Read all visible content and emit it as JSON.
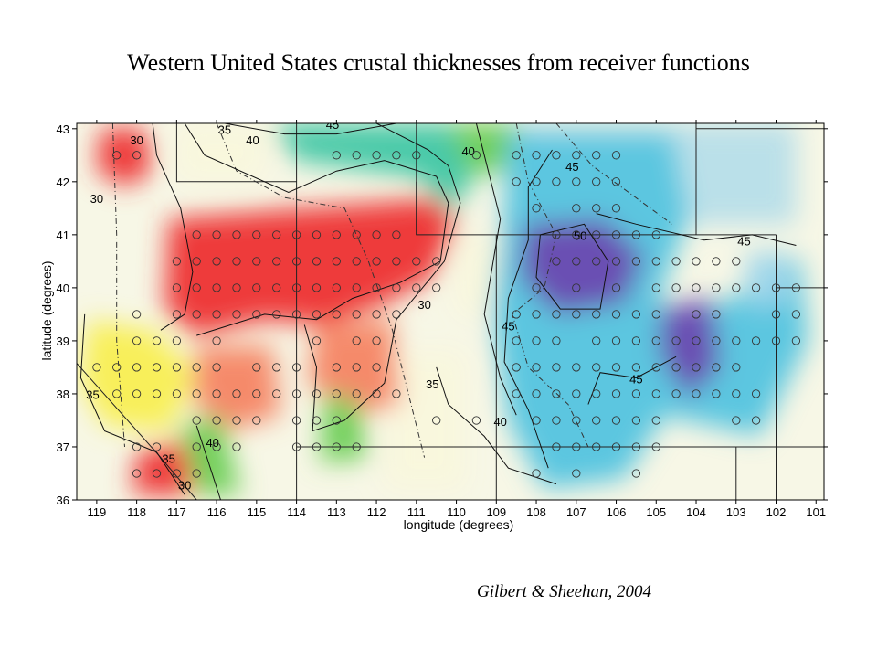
{
  "title": "Western United States crustal thicknesses from receiver functions",
  "citation": "Gilbert & Sheehan, 2004",
  "chart_data": {
    "type": "heatmap",
    "xlabel": "longitude (degrees)",
    "ylabel": "latitude (degrees)",
    "xlim": [
      119.5,
      100.8
    ],
    "ylim": [
      36,
      43.1
    ],
    "x_ticks": [
      "119",
      "118",
      "117",
      "116",
      "115",
      "114",
      "113",
      "112",
      "111",
      "110",
      "109",
      "108",
      "107",
      "106",
      "105",
      "104",
      "103",
      "102",
      "101"
    ],
    "y_ticks": [
      "43",
      "42",
      "41",
      "40",
      "39",
      "38",
      "37",
      "36"
    ],
    "colorscale": [
      {
        "value": 30,
        "color": "#ee3b3b"
      },
      {
        "value": 33,
        "color": "#f58a6a"
      },
      {
        "value": 35,
        "color": "#f8ef5a"
      },
      {
        "value": 38,
        "color": "#f9f7d8"
      },
      {
        "value": 40,
        "color": "#6fcf5a"
      },
      {
        "value": 42,
        "color": "#48c9a8"
      },
      {
        "value": 44,
        "color": "#5cc6e0"
      },
      {
        "value": 47,
        "color": "#9fd6ea"
      },
      {
        "value": 50,
        "color": "#6a4fb3"
      }
    ],
    "zones": [
      {
        "name": "Great Basin red zone",
        "x": 114.5,
        "y": 40.5,
        "value": 30
      },
      {
        "name": "NW corner red",
        "x": 118.2,
        "y": 42.4,
        "value": 31
      },
      {
        "name": "Utah red",
        "x": 111.5,
        "y": 40.8,
        "value": 31
      },
      {
        "name": "SE California red",
        "x": 117.3,
        "y": 36.4,
        "value": 31
      },
      {
        "name": "SW yellow",
        "x": 117.5,
        "y": 38.5,
        "value": 35
      },
      {
        "name": "Central Nevada orange",
        "x": 115.5,
        "y": 38.2,
        "value": 34
      },
      {
        "name": "Utah orange",
        "x": 112.3,
        "y": 38.5,
        "value": 34
      },
      {
        "name": "Colorado Plateau pale",
        "x": 110.5,
        "y": 38.5,
        "value": 38
      },
      {
        "name": "Sierra green",
        "x": 116.2,
        "y": 36.8,
        "value": 41
      },
      {
        "name": "Wyoming cyan",
        "x": 111.5,
        "y": 42.8,
        "value": 44
      },
      {
        "name": "Colorado purple",
        "x": 106.8,
        "y": 40.2,
        "value": 50
      },
      {
        "name": "Eastern purple",
        "x": 104.0,
        "y": 39.0,
        "value": 49
      },
      {
        "name": "Rocky Mt cyan",
        "x": 105.5,
        "y": 38.0,
        "value": 45
      },
      {
        "name": "Great Plains pale",
        "x": 102.5,
        "y": 41.7,
        "value": 46
      }
    ],
    "contour_levels": [
      30,
      35,
      40,
      45,
      50
    ],
    "contour_labels": [
      "30",
      "30",
      "30",
      "30",
      "35",
      "35",
      "35",
      "35",
      "40",
      "40",
      "40",
      "40",
      "45",
      "45",
      "45",
      "45",
      "45",
      "50"
    ],
    "stations": [
      [
        118.5,
        42.5
      ],
      [
        118,
        42.5
      ],
      [
        113,
        42.5
      ],
      [
        112.5,
        42.5
      ],
      [
        112,
        42.5
      ],
      [
        111.5,
        42.5
      ],
      [
        111,
        42.5
      ],
      [
        109.5,
        42.5
      ],
      [
        108.5,
        42.5
      ],
      [
        108,
        42.5
      ],
      [
        107.5,
        42.5
      ],
      [
        107,
        42.5
      ],
      [
        106.5,
        42.5
      ],
      [
        106,
        42.5
      ],
      [
        108.5,
        42
      ],
      [
        108,
        42
      ],
      [
        107.5,
        42
      ],
      [
        107,
        42
      ],
      [
        106.5,
        42
      ],
      [
        106,
        42
      ],
      [
        108,
        41.5
      ],
      [
        107,
        41.5
      ],
      [
        106.5,
        41.5
      ],
      [
        106,
        41.5
      ],
      [
        116.5,
        41
      ],
      [
        116,
        41
      ],
      [
        115.5,
        41
      ],
      [
        115,
        41
      ],
      [
        114.5,
        41
      ],
      [
        114,
        41
      ],
      [
        113.5,
        41
      ],
      [
        113,
        41
      ],
      [
        112.5,
        41
      ],
      [
        112,
        41
      ],
      [
        111.5,
        41
      ],
      [
        107.5,
        41
      ],
      [
        107,
        41
      ],
      [
        106.5,
        41
      ],
      [
        106,
        41
      ],
      [
        105.5,
        41
      ],
      [
        105,
        41
      ],
      [
        117,
        40.5
      ],
      [
        116.5,
        40.5
      ],
      [
        116,
        40.5
      ],
      [
        115.5,
        40.5
      ],
      [
        115,
        40.5
      ],
      [
        114.5,
        40.5
      ],
      [
        114,
        40.5
      ],
      [
        113.5,
        40.5
      ],
      [
        113,
        40.5
      ],
      [
        112.5,
        40.5
      ],
      [
        112,
        40.5
      ],
      [
        111.5,
        40.5
      ],
      [
        111,
        40.5
      ],
      [
        110.5,
        40.5
      ],
      [
        107.5,
        40.5
      ],
      [
        107,
        40.5
      ],
      [
        106.5,
        40.5
      ],
      [
        106,
        40.5
      ],
      [
        105.5,
        40.5
      ],
      [
        105,
        40.5
      ],
      [
        104.5,
        40.5
      ],
      [
        104,
        40.5
      ],
      [
        103.5,
        40.5
      ],
      [
        103,
        40.5
      ],
      [
        117,
        40
      ],
      [
        116.5,
        40
      ],
      [
        116,
        40
      ],
      [
        115.5,
        40
      ],
      [
        115,
        40
      ],
      [
        114.5,
        40
      ],
      [
        114,
        40
      ],
      [
        113.5,
        40
      ],
      [
        113,
        40
      ],
      [
        112.5,
        40
      ],
      [
        112,
        40
      ],
      [
        111.5,
        40
      ],
      [
        111,
        40
      ],
      [
        110.5,
        40
      ],
      [
        108,
        40
      ],
      [
        107,
        40
      ],
      [
        106,
        40
      ],
      [
        105,
        40
      ],
      [
        104.5,
        40
      ],
      [
        104,
        40
      ],
      [
        103.5,
        40
      ],
      [
        103,
        40
      ],
      [
        102.5,
        40
      ],
      [
        102,
        40
      ],
      [
        101.5,
        40
      ],
      [
        118,
        39.5
      ],
      [
        117,
        39.5
      ],
      [
        116.5,
        39.5
      ],
      [
        116,
        39.5
      ],
      [
        115.5,
        39.5
      ],
      [
        115,
        39.5
      ],
      [
        114.5,
        39.5
      ],
      [
        114,
        39.5
      ],
      [
        113.5,
        39.5
      ],
      [
        113,
        39.5
      ],
      [
        112.5,
        39.5
      ],
      [
        112,
        39.5
      ],
      [
        111.5,
        39.5
      ],
      [
        108.5,
        39.5
      ],
      [
        108,
        39.5
      ],
      [
        107.5,
        39.5
      ],
      [
        107,
        39.5
      ],
      [
        106.5,
        39.5
      ],
      [
        106,
        39.5
      ],
      [
        105.5,
        39.5
      ],
      [
        105,
        39.5
      ],
      [
        104,
        39.5
      ],
      [
        103.5,
        39.5
      ],
      [
        102,
        39.5
      ],
      [
        101.5,
        39.5
      ],
      [
        118,
        39
      ],
      [
        117.5,
        39
      ],
      [
        117,
        39
      ],
      [
        116,
        39
      ],
      [
        113.5,
        39
      ],
      [
        112.5,
        39
      ],
      [
        112,
        39
      ],
      [
        108.5,
        39
      ],
      [
        108,
        39
      ],
      [
        107.5,
        39
      ],
      [
        106.5,
        39
      ],
      [
        106,
        39
      ],
      [
        105.5,
        39
      ],
      [
        105,
        39
      ],
      [
        104.5,
        39
      ],
      [
        104,
        39
      ],
      [
        103.5,
        39
      ],
      [
        103,
        39
      ],
      [
        102.5,
        39
      ],
      [
        102,
        39
      ],
      [
        101.5,
        39
      ],
      [
        119,
        38.5
      ],
      [
        118.5,
        38.5
      ],
      [
        118,
        38.5
      ],
      [
        117.5,
        38.5
      ],
      [
        117,
        38.5
      ],
      [
        116.5,
        38.5
      ],
      [
        116,
        38.5
      ],
      [
        115,
        38.5
      ],
      [
        114.5,
        38.5
      ],
      [
        114,
        38.5
      ],
      [
        113,
        38.5
      ],
      [
        112.5,
        38.5
      ],
      [
        112,
        38.5
      ],
      [
        108.5,
        38.5
      ],
      [
        108,
        38.5
      ],
      [
        107.5,
        38.5
      ],
      [
        107,
        38.5
      ],
      [
        106.5,
        38.5
      ],
      [
        106,
        38.5
      ],
      [
        105.5,
        38.5
      ],
      [
        105,
        38.5
      ],
      [
        104.5,
        38.5
      ],
      [
        104,
        38.5
      ],
      [
        103.5,
        38.5
      ],
      [
        103,
        38.5
      ],
      [
        118.5,
        38
      ],
      [
        118,
        38
      ],
      [
        117.5,
        38
      ],
      [
        117,
        38
      ],
      [
        116.5,
        38
      ],
      [
        116,
        38
      ],
      [
        115.5,
        38
      ],
      [
        115,
        38
      ],
      [
        114.5,
        38
      ],
      [
        114,
        38
      ],
      [
        113.5,
        38
      ],
      [
        113,
        38
      ],
      [
        112.5,
        38
      ],
      [
        112,
        38
      ],
      [
        111.5,
        38
      ],
      [
        108.5,
        38
      ],
      [
        108,
        38
      ],
      [
        107.5,
        38
      ],
      [
        107,
        38
      ],
      [
        106.5,
        38
      ],
      [
        106,
        38
      ],
      [
        105.5,
        38
      ],
      [
        105,
        38
      ],
      [
        104.5,
        38
      ],
      [
        104,
        38
      ],
      [
        103.5,
        38
      ],
      [
        103,
        38
      ],
      [
        102.5,
        38
      ],
      [
        116.5,
        37.5
      ],
      [
        116,
        37.5
      ],
      [
        115.5,
        37.5
      ],
      [
        115,
        37.5
      ],
      [
        114,
        37.5
      ],
      [
        113.5,
        37.5
      ],
      [
        113,
        37.5
      ],
      [
        110.5,
        37.5
      ],
      [
        109.5,
        37.5
      ],
      [
        108,
        37.5
      ],
      [
        107.5,
        37.5
      ],
      [
        107,
        37.5
      ],
      [
        106.5,
        37.5
      ],
      [
        106,
        37.5
      ],
      [
        105.5,
        37.5
      ],
      [
        105,
        37.5
      ],
      [
        103,
        37.5
      ],
      [
        102.5,
        37.5
      ],
      [
        118,
        37
      ],
      [
        117.5,
        37
      ],
      [
        116.5,
        37
      ],
      [
        116,
        37
      ],
      [
        115.5,
        37
      ],
      [
        114,
        37
      ],
      [
        113.5,
        37
      ],
      [
        113,
        37
      ],
      [
        112.5,
        37
      ],
      [
        107.5,
        37
      ],
      [
        107,
        37
      ],
      [
        106.5,
        37
      ],
      [
        106,
        37
      ],
      [
        105.5,
        37
      ],
      [
        105,
        37
      ],
      [
        118,
        36.5
      ],
      [
        117.5,
        36.5
      ],
      [
        117,
        36.5
      ],
      [
        116.5,
        36.5
      ],
      [
        108,
        36.5
      ],
      [
        107,
        36.5
      ],
      [
        105.5,
        36.5
      ]
    ]
  }
}
